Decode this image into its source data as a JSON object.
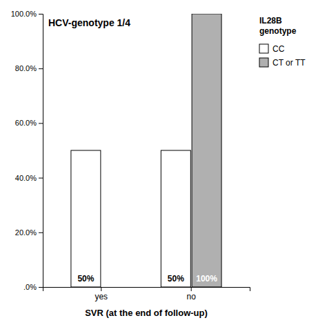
{
  "chart_data": {
    "type": "bar",
    "title": "HCV-genotype 1/4",
    "xlabel": "SVR (at the end of follow-up)",
    "categories": [
      "yes",
      "no"
    ],
    "series": [
      {
        "name": "CC",
        "color": "#ffffff",
        "values": [
          50,
          50
        ],
        "value_labels": [
          "50%",
          "50%"
        ]
      },
      {
        "name": "CT or TT",
        "color": "#b0b0b0",
        "values": [
          0,
          100
        ],
        "value_labels": [
          null,
          "100%"
        ]
      }
    ],
    "ylim": [
      0,
      100
    ],
    "yticks": [
      {
        "value": 0,
        "label": ".0%"
      },
      {
        "value": 20,
        "label": "20.0%"
      },
      {
        "value": 40,
        "label": "40.0%"
      },
      {
        "value": 60,
        "label": "60.0%"
      },
      {
        "value": 80,
        "label": "80.0%"
      },
      {
        "value": 100,
        "label": "100.0%"
      }
    ],
    "legend_title": "IL28B\ngenotype",
    "legend": "right",
    "data_labels": true,
    "grid": false
  }
}
